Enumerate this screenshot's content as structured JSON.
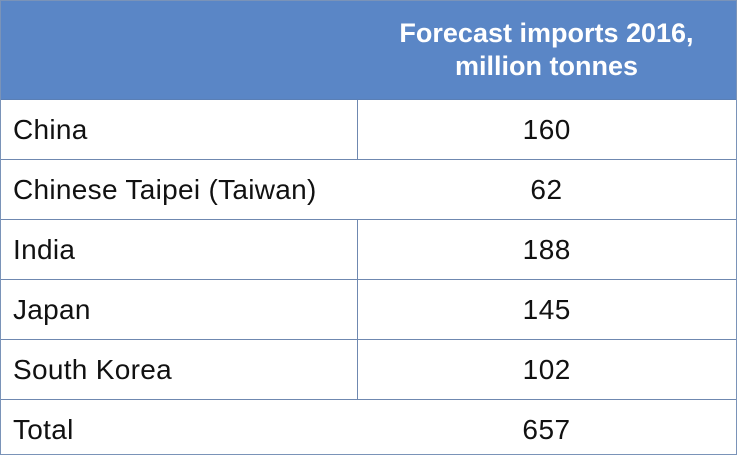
{
  "chart_data": {
    "type": "table",
    "columns": [
      "",
      "Forecast imports 2016,\nmillion tonnes"
    ],
    "header_line1": "Forecast imports 2016,",
    "header_line2": "million tonnes",
    "rows": [
      {
        "label": "China",
        "value": "160"
      },
      {
        "label": "Chinese Taipei (Taiwan)",
        "value": "62"
      },
      {
        "label": "India",
        "value": "188"
      },
      {
        "label": "Japan",
        "value": "145"
      },
      {
        "label": "South Korea",
        "value": "102"
      },
      {
        "label": "Total",
        "value": "657"
      }
    ]
  },
  "colors": {
    "header_bg": "#5a86c6",
    "header_text": "#ffffff",
    "grid": "#6f88b0"
  }
}
